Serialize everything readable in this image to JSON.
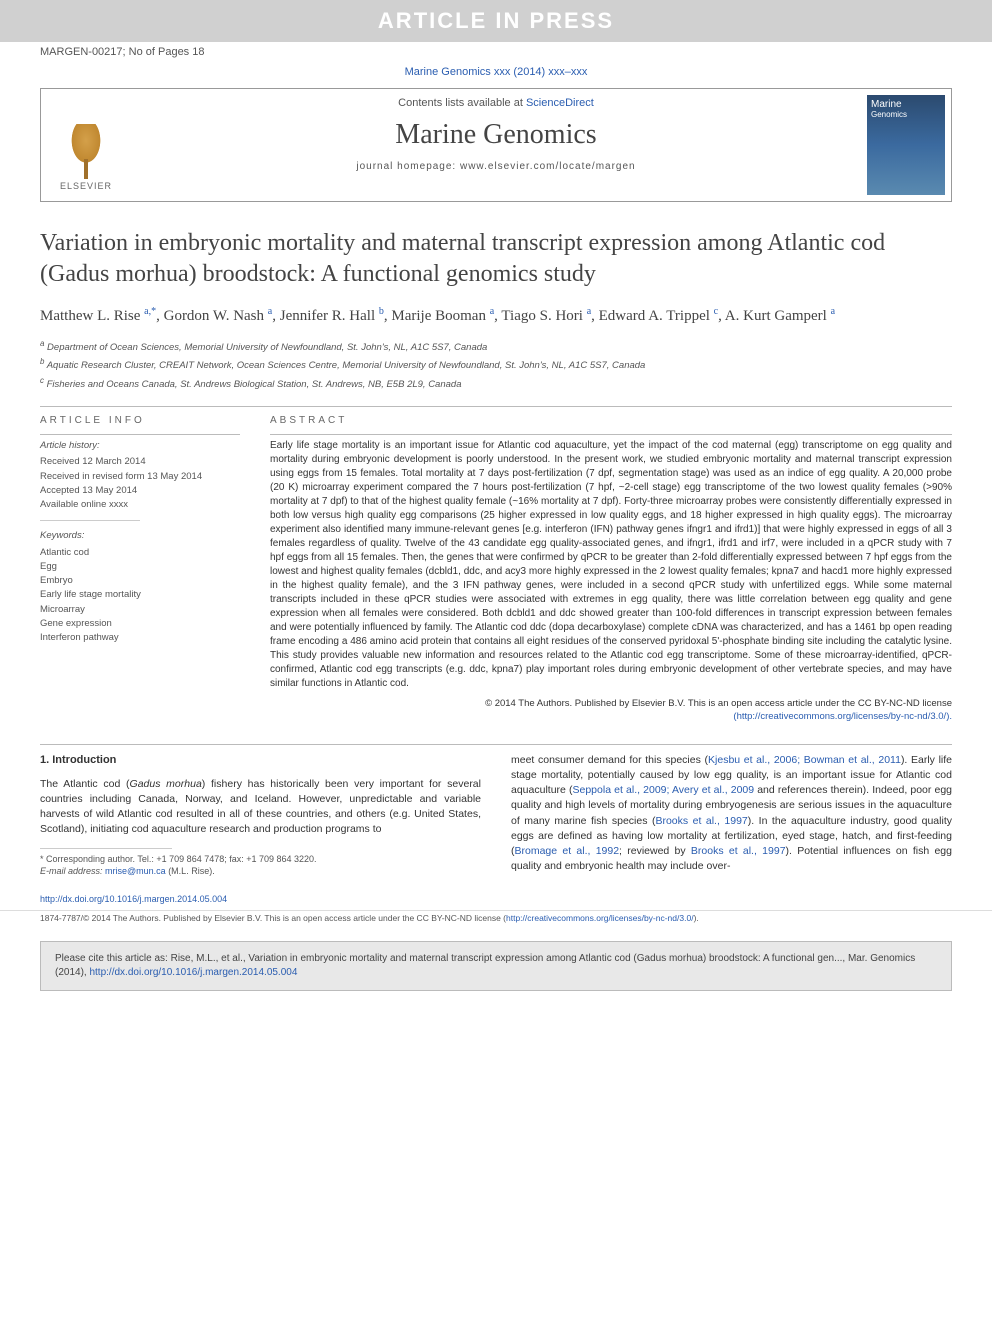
{
  "banner": "ARTICLE IN PRESS",
  "header": {
    "ref": "MARGEN-00217; No of Pages 18",
    "journal_ref": "Marine Genomics xxx (2014) xxx–xxx"
  },
  "journal_box": {
    "contents_text": "Contents lists available at ",
    "contents_link": "ScienceDirect",
    "journal_name": "Marine Genomics",
    "homepage_label": "journal homepage: www.elsevier.com/locate/margen",
    "publisher": "ELSEVIER",
    "cover_title": "Marine",
    "cover_sub": "Genomics"
  },
  "title": "Variation in embryonic mortality and maternal transcript expression among Atlantic cod (Gadus morhua) broodstock: A functional genomics study",
  "authors": "Matthew L. Rise <sup>a,*</sup>, Gordon W. Nash <sup>a</sup>, Jennifer R. Hall <sup>b</sup>, Marije Booman <sup>a</sup>, Tiago S. Hori <sup>a</sup>, Edward A. Trippel <sup>c</sup>, A. Kurt Gamperl <sup>a</sup>",
  "affiliations": [
    "a Department of Ocean Sciences, Memorial University of Newfoundland, St. John's, NL, A1C 5S7, Canada",
    "b Aquatic Research Cluster, CREAIT Network, Ocean Sciences Centre, Memorial University of Newfoundland, St. John's, NL, A1C 5S7, Canada",
    "c Fisheries and Oceans Canada, St. Andrews Biological Station, St. Andrews, NB, E5B 2L9, Canada"
  ],
  "article_info": {
    "label": "article info",
    "history_label": "Article history:",
    "history": [
      "Received 12 March 2014",
      "Received in revised form 13 May 2014",
      "Accepted 13 May 2014",
      "Available online xxxx"
    ],
    "keywords_label": "Keywords:",
    "keywords": [
      "Atlantic cod",
      "Egg",
      "Embryo",
      "Early life stage mortality",
      "Microarray",
      "Gene expression",
      "Interferon pathway"
    ]
  },
  "abstract": {
    "label": "abstract",
    "text": "Early life stage mortality is an important issue for Atlantic cod aquaculture, yet the impact of the cod maternal (egg) transcriptome on egg quality and mortality during embryonic development is poorly understood. In the present work, we studied embryonic mortality and maternal transcript expression using eggs from 15 females. Total mortality at 7 days post-fertilization (7 dpf, segmentation stage) was used as an indice of egg quality. A 20,000 probe (20 K) microarray experiment compared the 7 hours post-fertilization (7 hpf, ~2-cell stage) egg transcriptome of the two lowest quality females (>90% mortality at 7 dpf) to that of the highest quality female (~16% mortality at 7 dpf). Forty-three microarray probes were consistently differentially expressed in both low versus high quality egg comparisons (25 higher expressed in low quality eggs, and 18 higher expressed in high quality eggs). The microarray experiment also identified many immune-relevant genes [e.g. interferon (IFN) pathway genes ifngr1 and ifrd1)] that were highly expressed in eggs of all 3 females regardless of quality. Twelve of the 43 candidate egg quality-associated genes, and ifngr1, ifrd1 and irf7, were included in a qPCR study with 7 hpf eggs from all 15 females. Then, the genes that were confirmed by qPCR to be greater than 2-fold differentially expressed between 7 hpf eggs from the lowest and highest quality females (dcbld1, ddc, and acy3 more highly expressed in the 2 lowest quality females; kpna7 and hacd1 more highly expressed in the highest quality female), and the 3 IFN pathway genes, were included in a second qPCR study with unfertilized eggs. While some maternal transcripts included in these qPCR studies were associated with extremes in egg quality, there was little correlation between egg quality and gene expression when all females were considered. Both dcbld1 and ddc showed greater than 100-fold differences in transcript expression between females and were potentially influenced by family. The Atlantic cod ddc (dopa decarboxylase) complete cDNA was characterized, and has a 1461 bp open reading frame encoding a 486 amino acid protein that contains all eight residues of the conserved pyridoxal 5'-phosphate binding site including the catalytic lysine. This study provides valuable new information and resources related to the Atlantic cod egg transcriptome. Some of these microarray-identified, qPCR-confirmed, Atlantic cod egg transcripts (e.g. ddc, kpna7) play important roles during embryonic development of other vertebrate species, and may have similar functions in Atlantic cod.",
    "copyright": "© 2014 The Authors. Published by Elsevier B.V. This is an open access article under the CC BY-NC-ND license",
    "license_link": "(http://creativecommons.org/licenses/by-nc-nd/3.0/)."
  },
  "intro": {
    "heading": "1. Introduction",
    "col1": "The Atlantic cod (Gadus morhua) fishery has historically been very important for several countries including Canada, Norway, and Iceland. However, unpredictable and variable harvests of wild Atlantic cod resulted in all of these countries, and others (e.g. United States, Scotland), initiating cod aquaculture research and production programs to",
    "col2": "meet consumer demand for this species (Kjesbu et al., 2006; Bowman et al., 2011). Early life stage mortality, potentially caused by low egg quality, is an important issue for Atlantic cod aquaculture (Seppola et al., 2009; Avery et al., 2009 and references therein). Indeed, poor egg quality and high levels of mortality during embryogenesis are serious issues in the aquaculture of many marine fish species (Brooks et al., 1997). In the aquaculture industry, good quality eggs are defined as having low mortality at fertilization, eyed stage, hatch, and first-feeding (Bromage et al., 1992; reviewed by Brooks et al., 1997). Potential influences on fish egg quality and embryonic health may include over-"
  },
  "footnote": {
    "corresponding": "* Corresponding author. Tel.: +1 709 864 7478; fax: +1 709 864 3220.",
    "email_label": "E-mail address: ",
    "email": "mrise@mun.ca",
    "email_name": " (M.L. Rise)."
  },
  "footer": {
    "doi": "http://dx.doi.org/10.1016/j.margen.2014.05.004",
    "issn_line": "1874-7787/© 2014 The Authors. Published by Elsevier B.V. This is an open access article under the CC BY-NC-ND license (",
    "issn_link": "http://creativecommons.org/licenses/by-nc-nd/3.0/",
    "issn_end": ")."
  },
  "cite_box": {
    "text": "Please cite this article as: Rise, M.L., et al., Variation in embryonic mortality and maternal transcript expression among Atlantic cod (Gadus morhua) broodstock: A functional gen..., Mar. Genomics (2014), ",
    "link": "http://dx.doi.org/10.1016/j.margen.2014.05.004"
  }
}
